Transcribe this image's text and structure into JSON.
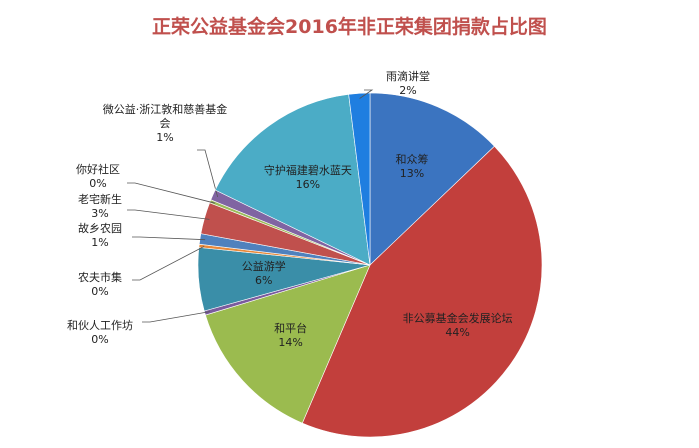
{
  "chart_data": {
    "type": "pie",
    "title": "正荣公益基金会2016年非正荣集团捐款占比图",
    "categories": [
      "和众筹",
      "非公募基金会发展论坛",
      "和平台",
      "和伙人工作坊",
      "公益游学",
      "农夫市集",
      "故乡农园",
      "老宅新生",
      "你好社区",
      "微公益·浙江敦和慈善基金会",
      "守护福建碧水蓝天",
      "雨滴讲堂"
    ],
    "values": [
      13,
      44,
      14,
      0.4,
      6,
      0.3,
      1,
      3,
      0.3,
      1,
      16,
      2
    ],
    "value_labels": [
      "13%",
      "44%",
      "14%",
      "0%",
      "6%",
      "0%",
      "1%",
      "3%",
      "0%",
      "1%",
      "16%",
      "2%"
    ],
    "colors": [
      "#3b74c0",
      "#c23f3c",
      "#9bbb4f",
      "#7a5b9e",
      "#3a8ea8",
      "#e8893a",
      "#4f81bd",
      "#c0504d",
      "#9bbb59",
      "#8064a2",
      "#4bacc6",
      "#1f7ee0"
    ]
  }
}
